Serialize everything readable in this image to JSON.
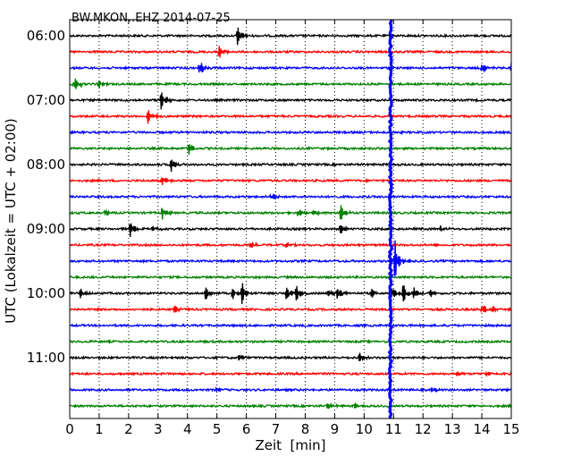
{
  "chart_data": {
    "type": "line",
    "title": "BW.MKON..EHZ 2014-07-25",
    "xlabel": "Zeit  [min]",
    "ylabel": "UTC (Lokalzeit = UTC + 02:00)",
    "xlim": [
      0,
      15
    ],
    "x_ticks": [
      "0",
      "1",
      "2",
      "3",
      "4",
      "5",
      "6",
      "7",
      "8",
      "9",
      "10",
      "11",
      "12",
      "13",
      "14",
      "15"
    ],
    "y_ticks": [
      {
        "row": 0,
        "label": "06:00"
      },
      {
        "row": 4,
        "label": "07:00"
      },
      {
        "row": 8,
        "label": "08:00"
      },
      {
        "row": 12,
        "label": "09:00"
      },
      {
        "row": 16,
        "label": "10:00"
      },
      {
        "row": 20,
        "label": "11:00"
      }
    ],
    "row_count": 24,
    "row_interval_minutes": 15,
    "grid": "vertical dotted at each minute",
    "colors": [
      "#000000",
      "#ff0000",
      "#0000ff",
      "#008000"
    ],
    "traces": [
      {
        "start": "06:00",
        "color": "#000000",
        "events": [
          {
            "t": 5.7,
            "amp": 1.0
          }
        ]
      },
      {
        "start": "06:15",
        "color": "#ff0000",
        "events": [
          {
            "t": 5.05,
            "amp": 0.8
          }
        ]
      },
      {
        "start": "06:30",
        "color": "#0000ff",
        "events": [
          {
            "t": 4.4,
            "amp": 0.9
          },
          {
            "t": 14.0,
            "amp": 0.7
          },
          {
            "t": 15.0,
            "amp": 0.5
          }
        ]
      },
      {
        "start": "06:45",
        "color": "#008000",
        "events": [
          {
            "t": 0.15,
            "amp": 0.9
          },
          {
            "t": 1.0,
            "amp": 0.4
          }
        ]
      },
      {
        "start": "07:00",
        "color": "#000000",
        "events": [
          {
            "t": 3.1,
            "amp": 1.0
          }
        ]
      },
      {
        "start": "07:15",
        "color": "#ff0000",
        "events": [
          {
            "t": 2.65,
            "amp": 0.8
          }
        ]
      },
      {
        "start": "07:30",
        "color": "#0000ff",
        "events": []
      },
      {
        "start": "07:45",
        "color": "#008000",
        "events": [
          {
            "t": 4.05,
            "amp": 0.7
          }
        ]
      },
      {
        "start": "08:00",
        "color": "#000000",
        "events": [
          {
            "t": 3.45,
            "amp": 0.8
          }
        ]
      },
      {
        "start": "08:15",
        "color": "#ff0000",
        "events": [
          {
            "t": 3.15,
            "amp": 0.6
          }
        ]
      },
      {
        "start": "08:30",
        "color": "#0000ff",
        "events": [
          {
            "t": 6.85,
            "amp": 0.4
          }
        ]
      },
      {
        "start": "08:45",
        "color": "#008000",
        "events": [
          {
            "t": 1.2,
            "amp": 0.4
          },
          {
            "t": 3.15,
            "amp": 0.8
          },
          {
            "t": 7.75,
            "amp": 0.5
          },
          {
            "t": 8.25,
            "amp": 0.4
          },
          {
            "t": 9.2,
            "amp": 0.9
          }
        ]
      },
      {
        "start": "09:00",
        "color": "#000000",
        "events": [
          {
            "t": 2.05,
            "amp": 0.8
          },
          {
            "t": 2.8,
            "amp": 0.3
          },
          {
            "t": 9.15,
            "amp": 0.8
          },
          {
            "t": 12.6,
            "amp": 0.3
          }
        ]
      },
      {
        "start": "09:15",
        "color": "#ff0000",
        "events": [
          {
            "t": 6.15,
            "amp": 0.3
          },
          {
            "t": 7.35,
            "amp": 0.3
          }
        ]
      },
      {
        "start": "09:30",
        "color": "#0000ff",
        "events": [
          {
            "t": 11.05,
            "amp": 2.2
          }
        ]
      },
      {
        "start": "09:45",
        "color": "#008000",
        "events": []
      },
      {
        "start": "10:00",
        "color": "#000000",
        "events": [
          {
            "t": 0.35,
            "amp": 0.5
          },
          {
            "t": 4.6,
            "amp": 0.9
          },
          {
            "t": 5.5,
            "amp": 0.8
          },
          {
            "t": 5.85,
            "amp": 1.1
          },
          {
            "t": 7.35,
            "amp": 0.8
          },
          {
            "t": 7.7,
            "amp": 0.9
          },
          {
            "t": 8.8,
            "amp": 0.5
          },
          {
            "t": 9.1,
            "amp": 0.6
          },
          {
            "t": 10.25,
            "amp": 0.5
          },
          {
            "t": 10.95,
            "amp": 0.8
          },
          {
            "t": 11.3,
            "amp": 1.2
          },
          {
            "t": 11.7,
            "amp": 0.7
          },
          {
            "t": 12.25,
            "amp": 0.5
          }
        ]
      },
      {
        "start": "10:15",
        "color": "#ff0000",
        "events": [
          {
            "t": 3.55,
            "amp": 0.5
          },
          {
            "t": 14.0,
            "amp": 0.7
          },
          {
            "t": 14.35,
            "amp": 0.4
          }
        ]
      },
      {
        "start": "10:30",
        "color": "#0000ff",
        "events": []
      },
      {
        "start": "10:45",
        "color": "#008000",
        "events": []
      },
      {
        "start": "11:00",
        "color": "#000000",
        "events": [
          {
            "t": 5.75,
            "amp": 0.5
          },
          {
            "t": 9.85,
            "amp": 0.5
          }
        ]
      },
      {
        "start": "11:15",
        "color": "#ff0000",
        "events": [
          {
            "t": 13.15,
            "amp": 0.3
          },
          {
            "t": 14.15,
            "amp": 0.3
          }
        ]
      },
      {
        "start": "11:30",
        "color": "#0000ff",
        "events": [
          {
            "t": 5.0,
            "amp": 0.3
          },
          {
            "t": 12.3,
            "amp": 0.3
          }
        ]
      },
      {
        "start": "11:45",
        "color": "#008000",
        "events": [
          {
            "t": 8.75,
            "amp": 0.4
          },
          {
            "t": 9.7,
            "amp": 0.3
          }
        ]
      }
    ],
    "marker": {
      "t": 10.9,
      "color": "#0000ff"
    }
  }
}
